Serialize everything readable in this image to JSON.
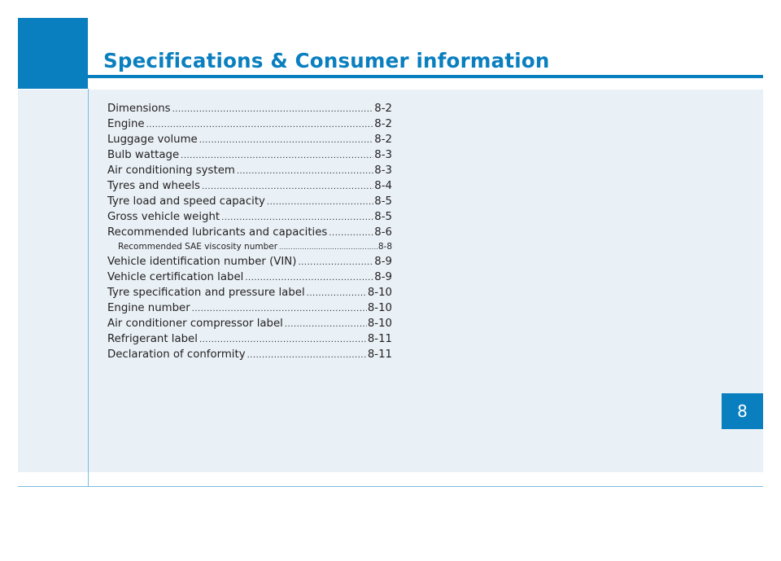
{
  "header": {
    "title": "Specifications & Consumer information"
  },
  "toc": {
    "entries": [
      {
        "label": "Dimensions",
        "page": "8-2"
      },
      {
        "label": "Engine",
        "page": "8-2"
      },
      {
        "label": "Luggage volume",
        "page": "8-2"
      },
      {
        "label": "Bulb wattage",
        "page": "8-3"
      },
      {
        "label": "Air conditioning system",
        "page": "8-3"
      },
      {
        "label": "Tyres and wheels",
        "page": "8-4"
      },
      {
        "label": "Tyre load and speed capacity",
        "page": "8-5"
      },
      {
        "label": "Gross vehicle weight",
        "page": "8-5"
      },
      {
        "label": "Recommended lubricants and capacities",
        "page": "8-6"
      },
      {
        "label": "Recommended SAE viscosity number",
        "page": "8-8",
        "sub": true
      },
      {
        "label": "Vehicle identification number (VIN)",
        "page": "8-9"
      },
      {
        "label": "Vehicle certification label",
        "page": "8-9"
      },
      {
        "label": "Tyre specification and pressure label",
        "page": "8-10"
      },
      {
        "label": "Engine number",
        "page": "8-10"
      },
      {
        "label": "Air conditioner compressor label",
        "page": "8-10"
      },
      {
        "label": "Refrigerant label",
        "page": "8-11"
      },
      {
        "label": "Declaration of conformity",
        "page": "8-11"
      }
    ]
  },
  "chapter_tab": {
    "number": "8"
  },
  "colors": {
    "accent": "#0a7fbf",
    "panel": "#e9f1f7",
    "text": "#231f20"
  }
}
